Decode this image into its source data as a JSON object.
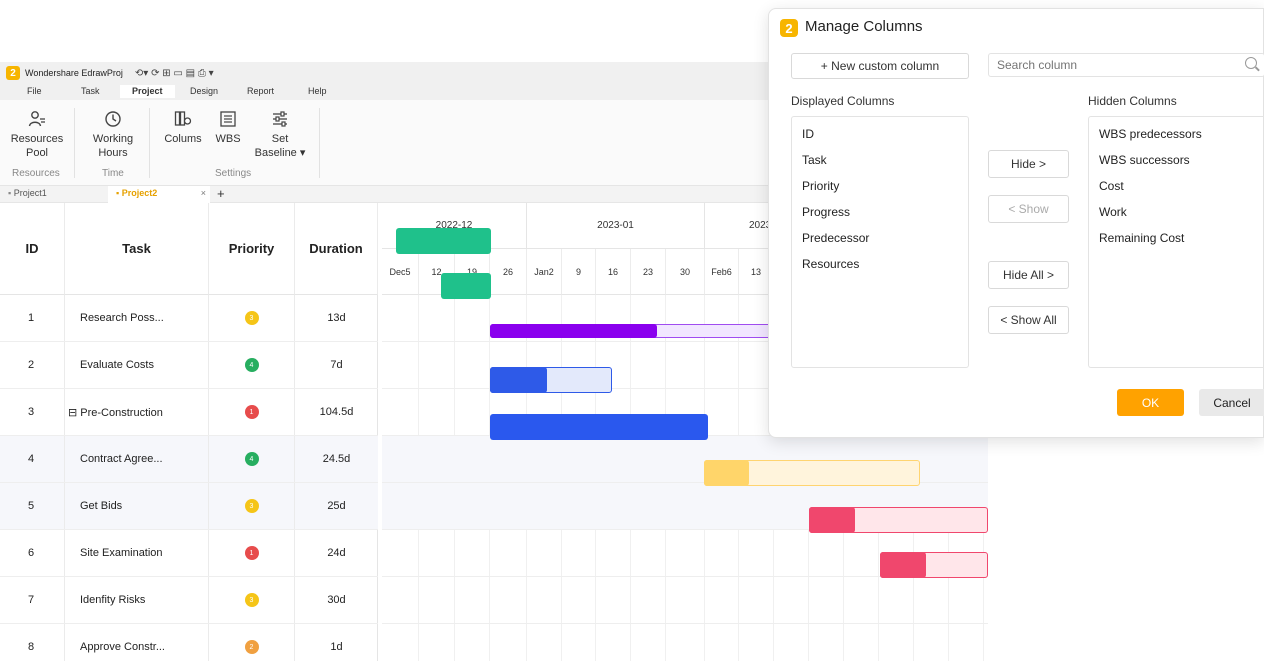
{
  "app": {
    "title": "Wondershare EdrawProj",
    "logo_letter": "2",
    "quick_access": "⟲▾   ⟳    ⊞    ▭    ▤    ⎙    ▾"
  },
  "menu": [
    "File",
    "Task",
    "Project",
    "Design",
    "Report",
    "Help"
  ],
  "ribbon": {
    "resources_pool": [
      "Resources",
      "Pool"
    ],
    "working_hours": [
      "Working",
      "Hours"
    ],
    "columns": "Colums",
    "wbs": "WBS",
    "set_baseline": [
      "Set",
      "Baseline ▾"
    ],
    "groups": [
      "Resources",
      "Time",
      "Settings"
    ]
  },
  "tabs": {
    "project1": "Project1",
    "project2": "Project2",
    "close": "×",
    "add": "+"
  },
  "grid": {
    "headers": [
      "ID",
      "Task",
      "Priority",
      "Duration"
    ],
    "rows": [
      {
        "id": "1",
        "task": "Research Poss...",
        "priority": "3",
        "priority_color": "#f5c518",
        "duration": "13d"
      },
      {
        "id": "2",
        "task": "Evaluate Costs",
        "priority": "4",
        "priority_color": "#27ae60",
        "duration": "7d"
      },
      {
        "id": "3",
        "task": "⊟ Pre-Construction",
        "priority": "1",
        "priority_color": "#e74c4c",
        "duration": "104.5d"
      },
      {
        "id": "4",
        "task": "Contract Agree...",
        "priority": "4",
        "priority_color": "#27ae60",
        "duration": "24.5d"
      },
      {
        "id": "5",
        "task": "Get Bids",
        "priority": "3",
        "priority_color": "#f5c518",
        "duration": "25d"
      },
      {
        "id": "6",
        "task": "Site Examination",
        "priority": "1",
        "priority_color": "#e74c4c",
        "duration": "24d"
      },
      {
        "id": "7",
        "task": "Idenfity Risks",
        "priority": "3",
        "priority_color": "#f5c518",
        "duration": "30d"
      },
      {
        "id": "8",
        "task": "Approve Constr...",
        "priority": "2",
        "priority_color": "#f0a040",
        "duration": "1d"
      }
    ]
  },
  "timeline": {
    "months": [
      "2022-12",
      "2023-01",
      "2023"
    ],
    "days": [
      "Dec5",
      "12",
      "19",
      "26",
      "Jan2",
      "9",
      "16",
      "23",
      "30",
      "Feb6",
      "13"
    ]
  },
  "dialog": {
    "title": "Manage Columns",
    "logo_letter": "2",
    "new_column": "+ New custom column",
    "search_placeholder": "Search column",
    "displayed_label": "Displayed Columns",
    "hidden_label": "Hidden Columns",
    "displayed": [
      "ID",
      "Task",
      "Priority",
      "Progress",
      "Predecessor",
      "Resources"
    ],
    "hidden": [
      "WBS predecessors",
      "WBS successors",
      "Cost",
      "Work",
      "Remaining Cost"
    ],
    "hide": "Hide >",
    "show": "< Show",
    "hide_all": "Hide All >",
    "show_all": "< Show All",
    "ok": "OK",
    "cancel": "Cancel"
  }
}
